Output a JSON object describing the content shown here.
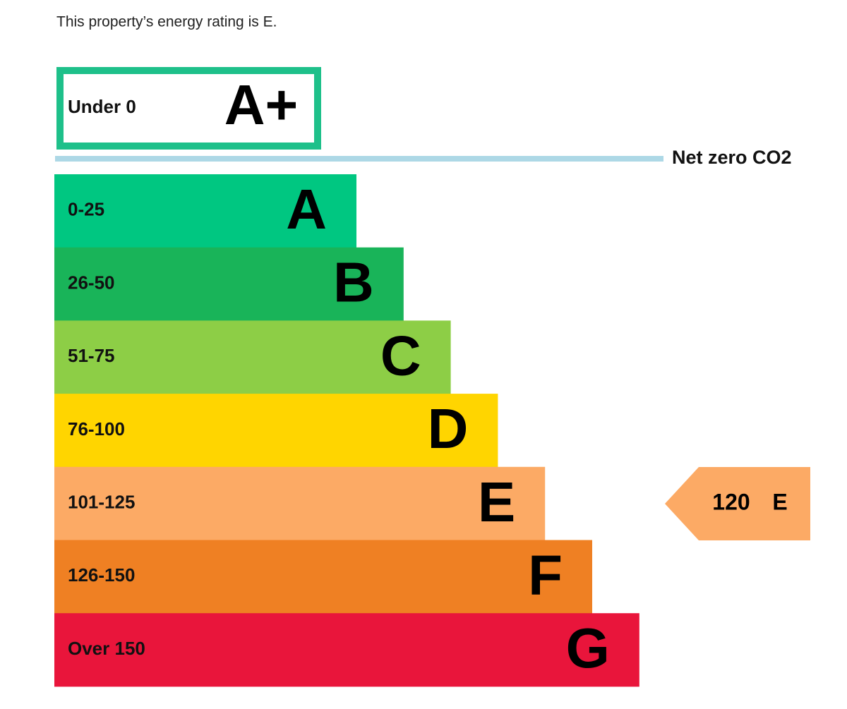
{
  "intro": "This property’s energy rating is E.",
  "top_band": {
    "range": "Under 0",
    "letter": "A+",
    "color": "#1ec08a"
  },
  "net_zero_label": "Net zero CO2",
  "bands": [
    {
      "range": "0-25",
      "letter": "A",
      "color": "#00c781"
    },
    {
      "range": "26-50",
      "letter": "B",
      "color": "#19b459"
    },
    {
      "range": "51-75",
      "letter": "C",
      "color": "#8dce46"
    },
    {
      "range": "76-100",
      "letter": "D",
      "color": "#ffd500"
    },
    {
      "range": "101-125",
      "letter": "E",
      "color": "#fcaa65"
    },
    {
      "range": "126-150",
      "letter": "F",
      "color": "#ef8023"
    },
    {
      "range": "Over 150",
      "letter": "G",
      "color": "#e9153b"
    }
  ],
  "current": {
    "value": 120,
    "letter": "E",
    "color": "#fcaa65"
  }
}
